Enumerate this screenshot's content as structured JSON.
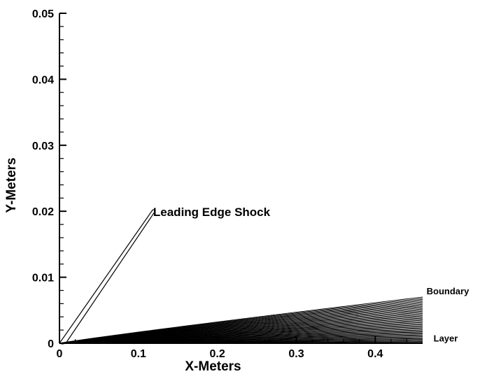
{
  "chart_data": {
    "type": "line",
    "title": "",
    "xlabel": "X-Meters",
    "ylabel": "Y-Meters",
    "xlim": [
      0,
      0.46
    ],
    "ylim": [
      0,
      0.05
    ],
    "x_ticks": [
      0,
      0.1,
      0.2,
      0.3,
      0.4
    ],
    "x_tick_labels": [
      "0",
      "0.1",
      "0.2",
      "0.3",
      "0.4"
    ],
    "y_ticks": [
      0,
      0.01,
      0.02,
      0.03,
      0.04,
      0.05
    ],
    "y_tick_labels": [
      "0",
      "0.01",
      "0.02",
      "0.03",
      "0.04",
      "0.05"
    ],
    "grid": false,
    "shock_contour": {
      "x": [
        0.0,
        0.008,
        0.12,
        0.118,
        0.0
      ],
      "y": [
        0.0,
        0.0,
        0.0198,
        0.0202,
        0.0
      ]
    },
    "boundary_layer": {
      "x_start": 0.0,
      "x_end": 0.46,
      "max_height": 0.007,
      "line_count": 44
    },
    "annotations": [
      {
        "text": "Leading Edge Shock",
        "x": 0.124,
        "y": 0.0198
      },
      {
        "text": "Boundary",
        "x": 0.465,
        "y": 0.0071
      },
      {
        "text": "Layer",
        "x": 0.465,
        "y": 0.0007
      }
    ]
  }
}
